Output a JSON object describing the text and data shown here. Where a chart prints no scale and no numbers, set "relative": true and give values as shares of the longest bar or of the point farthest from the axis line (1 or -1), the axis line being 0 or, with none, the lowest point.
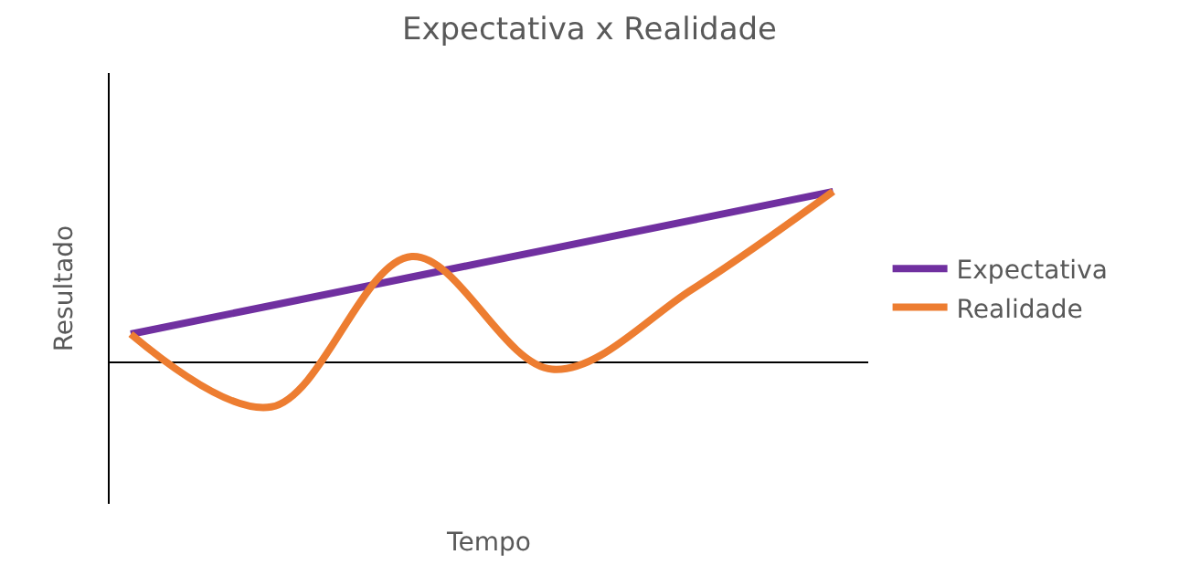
{
  "chart_data": {
    "type": "line",
    "title": "Expectativa x Realidade",
    "xlabel": "Tempo",
    "ylabel": "Resultado",
    "relative": true,
    "categories": [
      null,
      null,
      null,
      null,
      null,
      null
    ],
    "legend": "right",
    "marker": "none",
    "line_style": "solid",
    "series": [
      {
        "name": "Expectativa",
        "color": "#7030a0",
        "values": [
          0.166,
          0.333,
          0.5,
          0.666,
          0.833,
          1.0
        ]
      },
      {
        "name": "Realidade",
        "color": "#ed7d31",
        "values": [
          0.166,
          -0.26,
          0.62,
          -0.04,
          0.43,
          1.0
        ]
      }
    ]
  }
}
